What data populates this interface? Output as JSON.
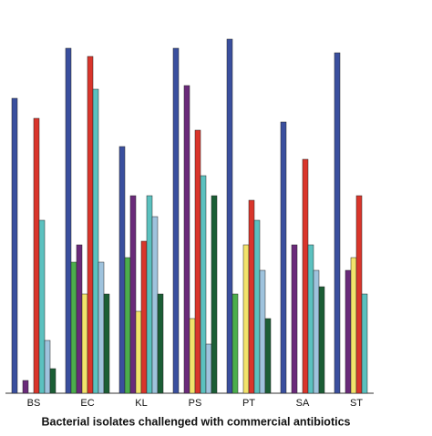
{
  "chart_data": {
    "type": "bar",
    "title": "Bacterial isolates challenged with commercial antibiotics",
    "categories": [
      "BS",
      "EC",
      "KL",
      "PS",
      "PT",
      "SA",
      "ST"
    ],
    "ylim": [
      0,
      100
    ],
    "series": [
      {
        "color": "#3a4f9e",
        "values": [
          81,
          94.75,
          67.75,
          94.75,
          97.25,
          74.5,
          93.5
        ]
      },
      {
        "color": "#4cae4c",
        "values": [
          0,
          36,
          37.25,
          0,
          27.25,
          0,
          0
        ]
      },
      {
        "color": "#6a2a7a",
        "values": [
          3.5,
          40.75,
          54.25,
          84.5,
          0,
          40.75,
          33.75
        ]
      },
      {
        "color": "#f2e36b",
        "values": [
          0,
          27.25,
          22.5,
          20.5,
          40.75,
          0,
          37.25
        ]
      },
      {
        "color": "#d9352b",
        "values": [
          75.5,
          92.5,
          41.75,
          72.25,
          53,
          64.25,
          54.25
        ]
      },
      {
        "color": "#5bc1bf",
        "values": [
          47.5,
          83.5,
          54.25,
          59.75,
          47.5,
          40.75,
          27.25
        ]
      },
      {
        "color": "#9fc3dd",
        "values": [
          14.5,
          36,
          48.5,
          13.5,
          33.75,
          33.75,
          0
        ]
      },
      {
        "color": "#1b5e35",
        "values": [
          6.75,
          27.25,
          27.25,
          54.25,
          20.5,
          29.25,
          0
        ]
      }
    ]
  }
}
